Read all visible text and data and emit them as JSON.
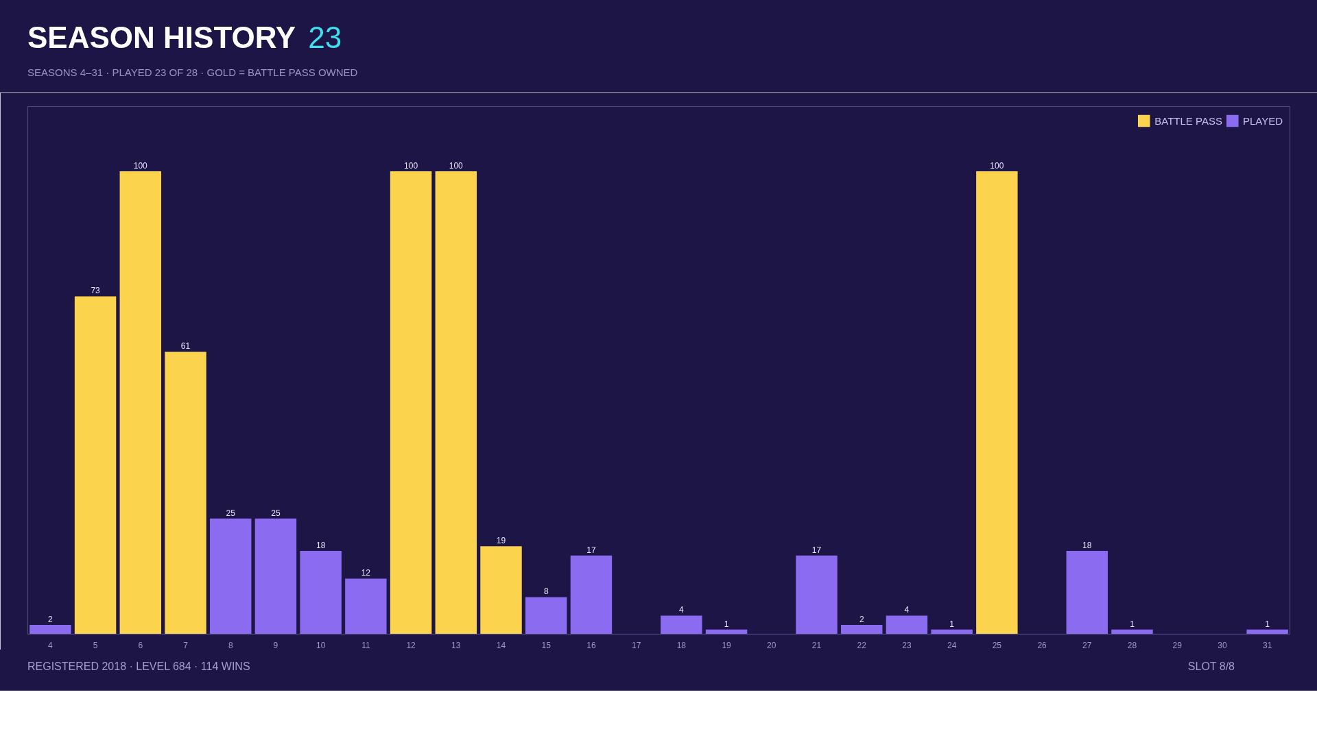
{
  "chart_data": {
    "type": "bar",
    "title": "SEASON HISTORY",
    "subtitle": "SEASONS 4–31 · PLAYED 23 OF 28 · GOLD = BATTLE PASS OWNED",
    "annotations": [
      "23",
      "REGISTERED 2018 · LEVEL 684 · 114 WINS",
      "SLOT 8/8"
    ],
    "categories": [
      "4",
      "5",
      "6",
      "7",
      "8",
      "9",
      "10",
      "11",
      "12",
      "13",
      "14",
      "15",
      "16",
      "17",
      "18",
      "19",
      "20",
      "21",
      "22",
      "23",
      "24",
      "25",
      "26",
      "27",
      "28",
      "29",
      "30",
      "31"
    ],
    "data_labels": true,
    "legend": "top right",
    "grid": false,
    "tick_labels": "x",
    "series": [
      {
        "name": "BATTLE PASS",
        "color": "#fcd34d",
        "values": [
          null,
          73,
          100,
          61,
          null,
          null,
          null,
          null,
          100,
          100,
          19,
          null,
          null,
          null,
          null,
          null,
          null,
          null,
          null,
          null,
          null,
          100,
          null,
          null,
          null,
          null,
          null,
          null
        ]
      },
      {
        "name": "PLAYED",
        "color": "#8b6cf0",
        "values": [
          2,
          null,
          null,
          null,
          25,
          25,
          18,
          12,
          null,
          null,
          null,
          8,
          17,
          null,
          4,
          1,
          null,
          17,
          2,
          4,
          1,
          null,
          null,
          18,
          1,
          null,
          null,
          1
        ]
      }
    ]
  }
}
